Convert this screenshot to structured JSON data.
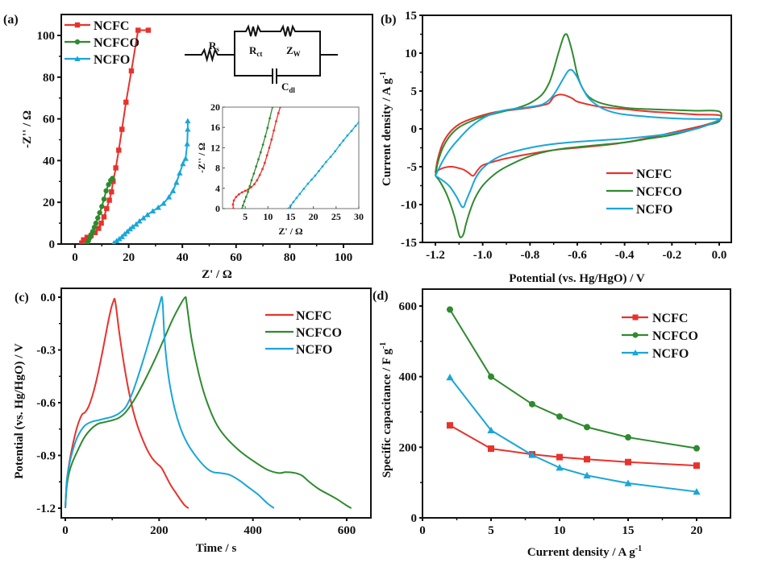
{
  "figure": {
    "colors": {
      "NCFC": "#e8322c",
      "NCFCO": "#2f8a2f",
      "NCFO": "#19a6d8"
    }
  },
  "chart_data": [
    {
      "id": "a",
      "panel_label": "(a)",
      "type": "scatter",
      "title": "",
      "xlabel": "Z' / Ω",
      "ylabel": "-Z'' / Ω",
      "xlim": [
        -5,
        107
      ],
      "ylim": [
        0,
        110
      ],
      "xticks": [
        0,
        20,
        40,
        60,
        80,
        100
      ],
      "yticks": [
        0,
        20,
        40,
        60,
        80,
        100
      ],
      "legend_position": "top-left",
      "series": [
        {
          "name": "NCFC",
          "marker": "square",
          "x": [
            2.5,
            3.2,
            4.5,
            6.0,
            7.5,
            8.8,
            9.8,
            10.8,
            11.8,
            12.8,
            13.6,
            14.2,
            15.2,
            16.3,
            17.5,
            19.0,
            21.0,
            23.5,
            27.3
          ],
          "y": [
            0.5,
            2.0,
            3.2,
            4.0,
            5.5,
            7.5,
            10.0,
            13.0,
            17.0,
            21.0,
            25.0,
            30.0,
            36.5,
            45.0,
            55.0,
            68.0,
            83.0,
            102.5,
            102.5
          ]
        },
        {
          "name": "NCFCO",
          "marker": "circle",
          "x": [
            4.5,
            5.0,
            5.5,
            6.0,
            6.6,
            7.2,
            7.8,
            8.5,
            9.2,
            10.0,
            10.8,
            11.6,
            12.5,
            13.3,
            14.0
          ],
          "y": [
            0.3,
            1.5,
            3.0,
            4.5,
            6.0,
            8.0,
            10.0,
            12.5,
            15.0,
            18.0,
            21.5,
            25.5,
            28.5,
            30.5,
            31.5
          ]
        },
        {
          "name": "NCFO",
          "marker": "triangle",
          "x": [
            14.5,
            15.5,
            16.5,
            17.5,
            18.5,
            19.5,
            20.5,
            21.5,
            22.8,
            24.0,
            25.5,
            27.0,
            29.0,
            31.0,
            33.0,
            35.0,
            36.5,
            37.8,
            39.0,
            40.2,
            41.2,
            41.8,
            42.0,
            42.0
          ],
          "y": [
            0.5,
            1.5,
            2.5,
            3.5,
            4.8,
            6.0,
            7.2,
            8.3,
            9.5,
            11.0,
            12.5,
            14.0,
            15.8,
            17.5,
            19.5,
            22.5,
            25.5,
            29.5,
            34.0,
            38.5,
            41.0,
            48.0,
            55.0,
            59.0
          ]
        }
      ],
      "inset": {
        "xlabel": "Z' / Ω",
        "ylabel": "-Z'' / Ω",
        "xlim": [
          0,
          30
        ],
        "ylim": [
          0,
          20
        ],
        "xticks": [
          5,
          10,
          15,
          20,
          25,
          30
        ],
        "yticks": [
          0,
          4,
          8,
          12,
          16,
          20
        ],
        "series": [
          {
            "name": "NCFC",
            "x": [
              2.4,
              2.3,
              2.5,
              3.0,
              3.6,
              4.3,
              5.0,
              5.7,
              6.3,
              7.0,
              7.6,
              8.2,
              8.8,
              9.3,
              9.8,
              10.3,
              10.8,
              11.3,
              11.8,
              12.3,
              12.7
            ],
            "y": [
              0.0,
              0.8,
              1.6,
              2.3,
              2.8,
              3.2,
              3.5,
              3.8,
              4.2,
              4.8,
              5.6,
              6.6,
              7.8,
              9.0,
              10.5,
              12.0,
              13.6,
              15.4,
              17.2,
              18.8,
              20.0
            ]
          },
          {
            "name": "NCFCO",
            "x": [
              4.3,
              4.5,
              4.8,
              5.2,
              5.6,
              6.0,
              6.4,
              6.9,
              7.4,
              7.9,
              8.4,
              8.9,
              9.4,
              9.9,
              10.4,
              11.0
            ],
            "y": [
              0.0,
              0.6,
              1.4,
              2.3,
              3.3,
              4.4,
              5.6,
              6.9,
              8.3,
              9.7,
              11.1,
              12.6,
              14.2,
              15.9,
              17.8,
              20.0
            ]
          },
          {
            "name": "NCFO",
            "x": [
              14.5,
              15.0,
              15.6,
              16.3,
              17.0,
              17.9,
              18.8,
              19.6,
              20.4,
              21.2,
              22.0,
              22.8,
              23.8,
              24.8,
              25.8,
              26.6,
              27.5,
              28.4,
              29.3,
              30.0
            ],
            "y": [
              0.0,
              0.6,
              1.3,
              2.1,
              2.9,
              3.9,
              4.9,
              5.7,
              6.5,
              7.4,
              8.3,
              9.2,
              10.2,
              11.3,
              12.5,
              13.4,
              14.4,
              15.3,
              16.3,
              17.0
            ]
          }
        ]
      },
      "circuit": {
        "labels": [
          "R",
          "s",
          "R",
          "ct",
          "Z",
          "W",
          "C",
          "dl"
        ]
      }
    },
    {
      "id": "b",
      "panel_label": "(b)",
      "type": "line",
      "title": "",
      "xlabel": "Potential (vs. Hg/HgO) / V",
      "ylabel": "Current density / A g",
      "ylabel_sup": "-1",
      "xlim": [
        -1.25,
        0.05
      ],
      "ylim": [
        -15,
        15
      ],
      "xticks": [
        -1.2,
        -1.0,
        -0.8,
        -0.6,
        -0.4,
        -0.2,
        0.0
      ],
      "xtick_labels": [
        "-1.2",
        "-1.0",
        "-0.8",
        "-0.6",
        "-0.4",
        "-0.2",
        "0.0"
      ],
      "yticks": [
        -15,
        -10,
        -5,
        0,
        5,
        10,
        15
      ],
      "legend_position": "lower-right",
      "series": [
        {
          "name": "NCFC",
          "x": [
            -1.2,
            -1.19,
            -1.17,
            -1.14,
            -1.1,
            -1.05,
            -1.0,
            -0.95,
            -0.9,
            -0.85,
            -0.8,
            -0.75,
            -0.72,
            -0.7,
            -0.68,
            -0.66,
            -0.64,
            -0.62,
            -0.6,
            -0.55,
            -0.5,
            -0.4,
            -0.3,
            -0.2,
            -0.1,
            0.0,
            0.0,
            -0.05,
            -0.1,
            -0.2,
            -0.3,
            -0.4,
            -0.5,
            -0.6,
            -0.7,
            -0.8,
            -0.9,
            -0.95,
            -1.0,
            -1.02,
            -1.04,
            -1.06,
            -1.08,
            -1.1,
            -1.13,
            -1.16,
            -1.19,
            -1.2
          ],
          "y": [
            -5.8,
            -4.0,
            -2.0,
            -0.5,
            0.6,
            1.3,
            1.8,
            2.2,
            2.4,
            2.6,
            2.8,
            3.1,
            3.4,
            4.2,
            4.5,
            4.5,
            4.3,
            4.0,
            3.6,
            3.2,
            2.9,
            2.6,
            2.3,
            2.1,
            1.9,
            1.8,
            1.2,
            0.6,
            0.2,
            -0.5,
            -1.2,
            -1.8,
            -2.2,
            -2.5,
            -2.8,
            -3.3,
            -3.9,
            -4.3,
            -4.8,
            -5.4,
            -6.2,
            -5.8,
            -5.4,
            -5.2,
            -5.0,
            -5.1,
            -5.5,
            -5.8
          ]
        },
        {
          "name": "NCFCO",
          "x": [
            -1.2,
            -1.19,
            -1.17,
            -1.14,
            -1.1,
            -1.05,
            -1.0,
            -0.95,
            -0.9,
            -0.85,
            -0.8,
            -0.75,
            -0.72,
            -0.7,
            -0.68,
            -0.66,
            -0.65,
            -0.64,
            -0.62,
            -0.6,
            -0.58,
            -0.55,
            -0.5,
            -0.4,
            -0.3,
            -0.2,
            -0.1,
            0.0,
            0.0,
            -0.05,
            -0.1,
            -0.2,
            -0.3,
            -0.4,
            -0.5,
            -0.6,
            -0.7,
            -0.8,
            -0.9,
            -0.95,
            -1.0,
            -1.03,
            -1.05,
            -1.07,
            -1.08,
            -1.09,
            -1.1,
            -1.12,
            -1.15,
            -1.18,
            -1.2
          ],
          "y": [
            -6.2,
            -4.5,
            -2.6,
            -1.0,
            0.2,
            1.0,
            1.6,
            2.0,
            2.4,
            2.8,
            3.4,
            4.5,
            6.0,
            7.8,
            10.0,
            12.0,
            12.5,
            12.2,
            10.0,
            7.2,
            5.5,
            4.2,
            3.4,
            2.8,
            2.6,
            2.5,
            2.4,
            2.3,
            1.0,
            0.5,
            0.0,
            -0.8,
            -1.3,
            -1.8,
            -2.1,
            -2.4,
            -2.8,
            -3.6,
            -5.0,
            -6.0,
            -7.5,
            -9.0,
            -10.5,
            -12.5,
            -13.8,
            -14.3,
            -14.0,
            -11.5,
            -8.8,
            -7.0,
            -6.2
          ]
        },
        {
          "name": "NCFO",
          "x": [
            -1.2,
            -1.17,
            -1.14,
            -1.1,
            -1.05,
            -1.0,
            -0.95,
            -0.9,
            -0.85,
            -0.8,
            -0.75,
            -0.72,
            -0.7,
            -0.68,
            -0.66,
            -0.64,
            -0.63,
            -0.62,
            -0.6,
            -0.58,
            -0.55,
            -0.5,
            -0.45,
            -0.4,
            -0.3,
            -0.2,
            -0.1,
            0.0,
            0.0,
            -0.05,
            -0.1,
            -0.2,
            -0.3,
            -0.4,
            -0.5,
            -0.6,
            -0.7,
            -0.8,
            -0.9,
            -0.95,
            -1.0,
            -1.03,
            -1.05,
            -1.07,
            -1.08,
            -1.09,
            -1.11,
            -1.14,
            -1.17,
            -1.2
          ],
          "y": [
            -6.2,
            -4.3,
            -2.8,
            -1.3,
            0.3,
            1.4,
            2.1,
            2.5,
            2.7,
            2.9,
            3.2,
            3.8,
            4.5,
            5.5,
            6.6,
            7.6,
            7.8,
            7.7,
            6.8,
            5.5,
            4.0,
            2.8,
            2.2,
            1.9,
            1.6,
            1.4,
            1.3,
            1.3,
            1.2,
            0.5,
            0.0,
            -0.6,
            -1.0,
            -1.3,
            -1.5,
            -1.7,
            -2.0,
            -2.5,
            -3.3,
            -4.0,
            -5.2,
            -6.5,
            -8.0,
            -9.5,
            -10.3,
            -10.2,
            -9.0,
            -7.6,
            -6.8,
            -6.2
          ]
        }
      ]
    },
    {
      "id": "c",
      "panel_label": "(c)",
      "type": "line",
      "title": "",
      "xlabel": "Time / s",
      "ylabel": "Potential (vs. Hg/HgO) / V",
      "xlim": [
        -10,
        650
      ],
      "ylim": [
        -1.22,
        0.02
      ],
      "xticks": [
        0,
        200,
        400,
        600
      ],
      "yticks": [
        -1.2,
        -0.9,
        -0.6,
        -0.3,
        0.0
      ],
      "ytick_labels": [
        "-1.2",
        "-0.9",
        "-0.6",
        "-0.3",
        "0.0"
      ],
      "legend_position": "top-right",
      "series": [
        {
          "name": "NCFC",
          "x": [
            0,
            3,
            8,
            15,
            25,
            35,
            42,
            50,
            60,
            70,
            80,
            90,
            98,
            103,
            105,
            108,
            115,
            125,
            135,
            145,
            155,
            165,
            175,
            185,
            195,
            205,
            215,
            225,
            235,
            245,
            255,
            263
          ],
          "y": [
            -1.2,
            -1.05,
            -0.95,
            -0.85,
            -0.74,
            -0.67,
            -0.655,
            -0.62,
            -0.54,
            -0.43,
            -0.3,
            -0.16,
            -0.06,
            -0.02,
            -0.01,
            -0.05,
            -0.2,
            -0.38,
            -0.53,
            -0.65,
            -0.74,
            -0.81,
            -0.87,
            -0.915,
            -0.945,
            -0.97,
            -1.02,
            -1.07,
            -1.11,
            -1.15,
            -1.185,
            -1.2
          ]
        },
        {
          "name": "NCFCO",
          "x": [
            0,
            3,
            8,
            15,
            25,
            40,
            55,
            70,
            85,
            100,
            115,
            130,
            150,
            170,
            190,
            210,
            230,
            248,
            256,
            258,
            262,
            270,
            285,
            300,
            320,
            340,
            370,
            400,
            430,
            455,
            470,
            490,
            505,
            520,
            540,
            560,
            580,
            600,
            610
          ],
          "y": [
            -1.2,
            -1.08,
            -1.0,
            -0.94,
            -0.88,
            -0.8,
            -0.75,
            -0.72,
            -0.71,
            -0.7,
            -0.685,
            -0.65,
            -0.57,
            -0.47,
            -0.36,
            -0.24,
            -0.12,
            -0.03,
            -0.0,
            -0.02,
            -0.1,
            -0.25,
            -0.44,
            -0.58,
            -0.71,
            -0.79,
            -0.87,
            -0.93,
            -0.98,
            -1.0,
            -0.995,
            -1.0,
            -1.015,
            -1.05,
            -1.09,
            -1.12,
            -1.15,
            -1.185,
            -1.2
          ]
        },
        {
          "name": "NCFO",
          "x": [
            0,
            3,
            8,
            15,
            25,
            40,
            55,
            70,
            85,
            100,
            115,
            130,
            145,
            160,
            175,
            190,
            200,
            204,
            206,
            208,
            212,
            220,
            232,
            245,
            260,
            280,
            300,
            315,
            330,
            350,
            370,
            390,
            410,
            430,
            445
          ],
          "y": [
            -1.2,
            -1.05,
            -0.96,
            -0.88,
            -0.8,
            -0.735,
            -0.71,
            -0.7,
            -0.69,
            -0.68,
            -0.66,
            -0.62,
            -0.53,
            -0.41,
            -0.28,
            -0.14,
            -0.05,
            -0.01,
            -0.0,
            -0.05,
            -0.25,
            -0.45,
            -0.62,
            -0.74,
            -0.83,
            -0.91,
            -0.97,
            -0.995,
            -1.0,
            -1.01,
            -1.04,
            -1.08,
            -1.12,
            -1.17,
            -1.2
          ]
        }
      ]
    },
    {
      "id": "d",
      "panel_label": "(d)",
      "type": "line",
      "title": "",
      "xlabel": "Current density / A g",
      "xlabel_sup": "-1",
      "ylabel": "Specific capacitance / F g",
      "ylabel_sup": "-1",
      "xlim": [
        0,
        22.5
      ],
      "ylim": [
        0,
        650
      ],
      "xticks": [
        0,
        5,
        10,
        15,
        20
      ],
      "yticks": [
        0,
        200,
        400,
        600
      ],
      "legend_position": "top-right",
      "categories_x": [
        2,
        5,
        8,
        10,
        12,
        15,
        20
      ],
      "series": [
        {
          "name": "NCFC",
          "marker": "square",
          "values": [
            262,
            196,
            180,
            172,
            166,
            158,
            148
          ]
        },
        {
          "name": "NCFCO",
          "marker": "circle",
          "values": [
            590,
            400,
            322,
            287,
            257,
            228,
            197
          ]
        },
        {
          "name": "NCFO",
          "marker": "triangle",
          "values": [
            398,
            248,
            178,
            142,
            120,
            98,
            74
          ]
        }
      ]
    }
  ]
}
